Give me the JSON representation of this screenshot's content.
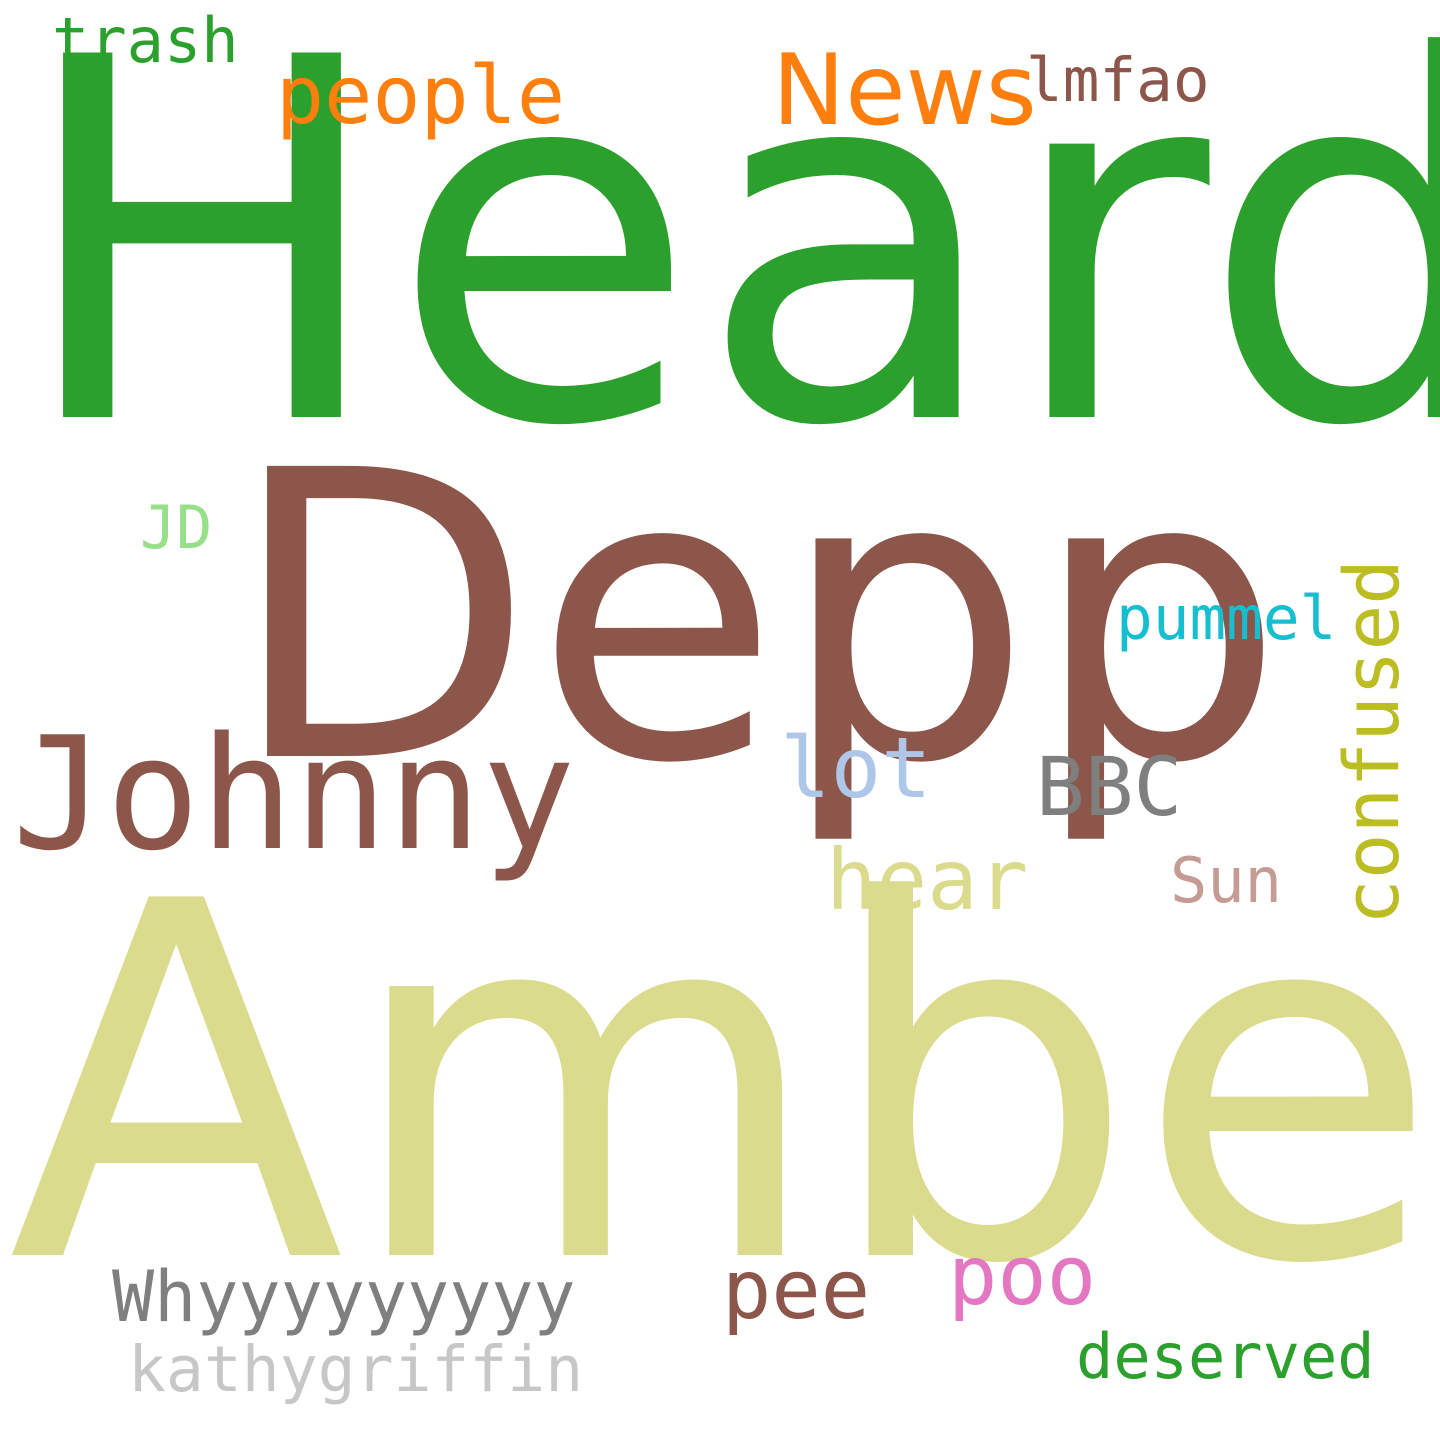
{
  "words": [
    {
      "key": "heard",
      "text": "Heard",
      "color": "#2ca02c"
    },
    {
      "key": "depp",
      "text": "Depp",
      "color": "#8c564b"
    },
    {
      "key": "amber",
      "text": "Amber",
      "color": "#dbdb8d"
    },
    {
      "key": "johnny",
      "text": "Johnny",
      "color": "#8c564b"
    },
    {
      "key": "news",
      "text": "News",
      "color": "#ff7f0e"
    },
    {
      "key": "people",
      "text": "people",
      "color": "#ff7f0e"
    },
    {
      "key": "trash",
      "text": "trash",
      "color": "#2ca02c"
    },
    {
      "key": "lmfao",
      "text": "lmfao",
      "color": "#8c564b"
    },
    {
      "key": "jd",
      "text": "JD",
      "color": "#98df8a"
    },
    {
      "key": "pummel",
      "text": "pummel",
      "color": "#17becf"
    },
    {
      "key": "confused",
      "text": "confused",
      "color": "#bcbd22"
    },
    {
      "key": "lot",
      "text": "lot",
      "color": "#aec7e8"
    },
    {
      "key": "bbc",
      "text": "BBC",
      "color": "#7f7f7f"
    },
    {
      "key": "hear",
      "text": "hear",
      "color": "#dbdb8d"
    },
    {
      "key": "sun",
      "text": "Sun",
      "color": "#c49c94"
    },
    {
      "key": "whyyy",
      "text": "Whyyyyyyyyy",
      "color": "#7f7f7f"
    },
    {
      "key": "pee",
      "text": "pee",
      "color": "#8c564b"
    },
    {
      "key": "poo",
      "text": "poo",
      "color": "#e377c2"
    },
    {
      "key": "kathygriffin",
      "text": "kathygriffin",
      "color": "#c7c7c7"
    },
    {
      "key": "deserved",
      "text": "deserved",
      "color": "#2ca02c"
    }
  ]
}
